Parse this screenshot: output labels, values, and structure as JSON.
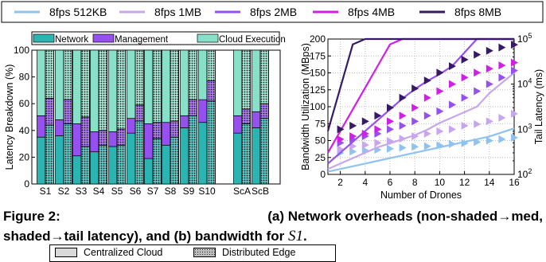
{
  "top_legend": [
    {
      "label": "8fps 512KB",
      "color": "#8ec3f1"
    },
    {
      "label": "8fps 1MB",
      "color": "#c8a6ef"
    },
    {
      "label": "8fps 2MB",
      "color": "#9650f0"
    },
    {
      "label": "8fps 4MB",
      "color": "#d21ee6"
    },
    {
      "label": "8fps 8MB",
      "color": "#361a66"
    }
  ],
  "chart_data": [
    {
      "type": "bar",
      "subplot": "(a)",
      "ylabel": "Latency Breakdown (%)",
      "ylim": [
        0,
        100
      ],
      "yticks": [
        0,
        20,
        40,
        60,
        80,
        100
      ],
      "categories": [
        "S1",
        "S2",
        "S3",
        "S4",
        "S5",
        "S6",
        "S7",
        "S8",
        "S9",
        "S10",
        "ScA",
        "ScB"
      ],
      "stack_legend": [
        "Network",
        "Management",
        "Cloud Execution"
      ],
      "colors": {
        "network": "#2bb5b2",
        "management": "#9650f0",
        "cloud": "#88e0c8"
      },
      "series": [
        {
          "name": "Centralized Cloud",
          "network": [
            35,
            36,
            21,
            24,
            28,
            38,
            19,
            29,
            42,
            46,
            38,
            42
          ],
          "management": [
            16,
            12,
            24,
            15,
            11,
            11,
            26,
            17,
            9,
            17,
            13,
            12
          ]
        },
        {
          "name": "Distributed Edge",
          "network": [
            44,
            45,
            28,
            29,
            29,
            47,
            34,
            35,
            51,
            62,
            45,
            49
          ],
          "management": [
            20,
            18,
            22,
            11,
            12,
            12,
            12,
            12,
            12,
            15,
            11,
            11
          ]
        }
      ],
      "hatch_legend": [
        "Centralized Cloud",
        "Distributed Edge"
      ]
    },
    {
      "type": "line",
      "subplot": "(b)",
      "xlabel": "Number of Drones",
      "ylabel": "Bandwidth Utilization (MBps)",
      "y2label": "Tail Latency (ms)",
      "xlim": [
        1,
        16
      ],
      "ylim": [
        0,
        200
      ],
      "xticks": [
        2,
        4,
        6,
        8,
        10,
        12,
        14,
        16
      ],
      "yticks": [
        0,
        25,
        50,
        75,
        100,
        125,
        150,
        175,
        200
      ],
      "y2scale": "log",
      "y2lim": [
        100,
        100000
      ],
      "y2ticks": [
        "10^2",
        "10^3",
        "10^4",
        "10^5"
      ],
      "x": [
        1,
        2,
        3,
        4,
        5,
        6,
        7,
        8,
        9,
        10,
        11,
        12,
        13,
        14,
        15,
        16
      ],
      "series": [
        {
          "name": "8fps 512KB",
          "bandwidth": [
            4,
            8,
            12,
            16,
            20,
            24,
            28,
            32,
            36,
            40,
            44,
            48,
            52,
            56,
            62,
            68
          ],
          "tail_latency_ms": [
            270,
            300,
            320,
            340,
            350,
            370,
            390,
            410,
            420,
            440,
            470,
            490,
            520,
            560,
            600,
            650
          ]
        },
        {
          "name": "8fps 1MB",
          "bandwidth": [
            8,
            16,
            24,
            32,
            40,
            46,
            52,
            58,
            66,
            76,
            84,
            92,
            100,
            120,
            135,
            150
          ],
          "tail_latency_ms": [
            300,
            360,
            420,
            450,
            500,
            550,
            620,
            700,
            800,
            900,
            1000,
            1200,
            1300,
            1500,
            1800,
            2200
          ]
        },
        {
          "name": "8fps 2MB",
          "bandwidth": [
            16,
            32,
            48,
            64,
            80,
            96,
            112,
            126,
            138,
            148,
            160,
            180,
            200,
            200,
            200,
            200
          ],
          "tail_latency_ms": [
            400,
            500,
            600,
            700,
            800,
            1000,
            1200,
            1500,
            2000,
            2500,
            3500,
            5000,
            7000,
            10000,
            14000,
            20000
          ]
        },
        {
          "name": "8fps 4MB",
          "bandwidth": [
            32,
            64,
            96,
            128,
            160,
            192,
            200,
            200,
            200,
            200,
            200,
            200,
            200,
            200,
            200,
            200
          ],
          "tail_latency_ms": [
            500,
            600,
            700,
            800,
            1000,
            1500,
            2000,
            3000,
            5000,
            7000,
            10000,
            14000,
            18000,
            22000,
            26000,
            30000
          ]
        },
        {
          "name": "8fps 8MB",
          "bandwidth": [
            64,
            128,
            192,
            200,
            200,
            200,
            200,
            200,
            200,
            200,
            200,
            200,
            200,
            200,
            200,
            200
          ],
          "tail_latency_ms": [
            800,
            1000,
            1200,
            1500,
            2000,
            3000,
            5000,
            8000,
            12000,
            18000,
            25000,
            35000,
            45000,
            55000,
            65000,
            75000
          ]
        }
      ]
    }
  ],
  "caption": {
    "line1": [
      "Figure 2:",
      "(a) Network overheads (non-shaded→med,"
    ],
    "line2_text": "shaded→tail latency), and (b) bandwidth for ",
    "line2_math": "S1",
    "line2_end": "."
  }
}
